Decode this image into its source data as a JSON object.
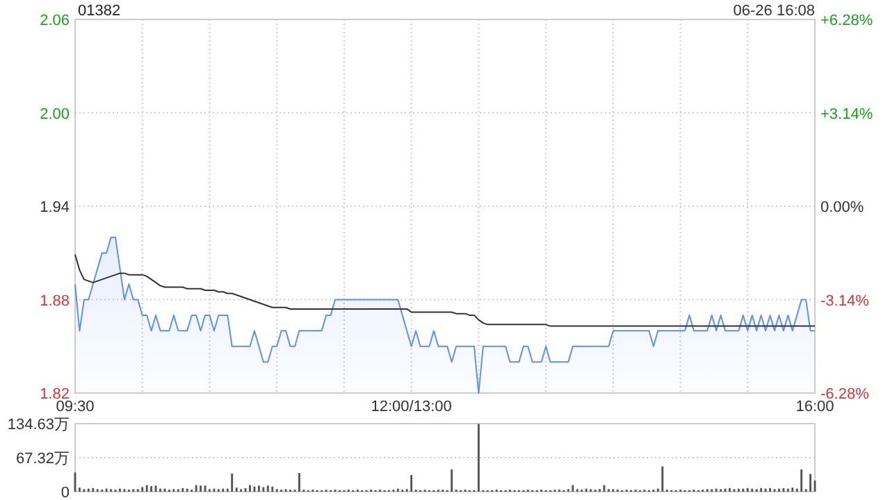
{
  "chart_data": [
    {
      "type": "line",
      "title": "01382",
      "subtitle": "06-26 16:08",
      "categories": [
        "09:30",
        null,
        null,
        null,
        null,
        null,
        null,
        null,
        null,
        null,
        null,
        null,
        null,
        null,
        null,
        null,
        null,
        null,
        null,
        null,
        null,
        null,
        null,
        null,
        null,
        null,
        null,
        null,
        null,
        null,
        null,
        null,
        null,
        null,
        null,
        null,
        null,
        null,
        null,
        null,
        null,
        null,
        null,
        null,
        null,
        null,
        null,
        null,
        null,
        null,
        null,
        null,
        null,
        null,
        null,
        null,
        null,
        null,
        null,
        null,
        null,
        null,
        null,
        null,
        null,
        null,
        null,
        null,
        null,
        null,
        null,
        null,
        null,
        null,
        null,
        "12:00/13:00",
        null,
        null,
        null,
        null,
        null,
        null,
        null,
        null,
        null,
        null,
        null,
        null,
        null,
        null,
        null,
        null,
        null,
        null,
        null,
        null,
        null,
        null,
        null,
        null,
        null,
        null,
        null,
        null,
        null,
        null,
        null,
        null,
        null,
        null,
        null,
        null,
        null,
        null,
        null,
        null,
        null,
        null,
        null,
        null,
        null,
        null,
        null,
        null,
        null,
        null,
        null,
        null,
        null,
        null,
        null,
        null,
        null,
        null,
        null,
        null,
        null,
        null,
        null,
        null,
        null,
        null,
        null,
        null,
        null,
        null,
        null,
        null,
        null,
        null,
        null,
        null,
        null,
        null,
        null,
        null,
        null,
        null,
        null,
        null,
        null,
        null,
        null,
        null,
        null,
        "16:00"
      ],
      "ylim": [
        1.82,
        2.06
      ],
      "yticks": [
        {
          "value": 1.82,
          "label": "1.82"
        },
        {
          "value": 1.88,
          "label": "1.88"
        },
        {
          "value": 1.94,
          "label": "1.94"
        },
        {
          "value": 2.0,
          "label": "2.00"
        },
        {
          "value": 2.06,
          "label": "2.06"
        }
      ],
      "y2lim": [
        -6.28,
        6.28
      ],
      "y2ticks": [
        {
          "value": -6.28,
          "label": "-6.28%"
        },
        {
          "value": -3.14,
          "label": "-3.14%"
        },
        {
          "value": 0,
          "label": "0.00%"
        },
        {
          "value": 3.14,
          "label": "+3.14%"
        },
        {
          "value": 6.28,
          "label": "+6.28%"
        }
      ],
      "grid": true,
      "series": [
        {
          "type": "area",
          "color": "#5b8ff9",
          "values": [
            1.89,
            1.86,
            1.88,
            1.88,
            1.89,
            1.9,
            1.91,
            1.91,
            1.92,
            1.92,
            1.9,
            1.88,
            1.89,
            1.88,
            1.88,
            1.87,
            1.87,
            1.86,
            1.87,
            1.86,
            1.86,
            1.86,
            1.87,
            1.86,
            1.86,
            1.86,
            1.87,
            1.87,
            1.86,
            1.87,
            1.87,
            1.86,
            1.87,
            1.87,
            1.87,
            1.85,
            1.85,
            1.85,
            1.85,
            1.85,
            1.86,
            1.85,
            1.84,
            1.84,
            1.85,
            1.85,
            1.86,
            1.86,
            1.85,
            1.85,
            1.86,
            1.86,
            1.86,
            1.86,
            1.86,
            1.86,
            1.87,
            1.87,
            1.88,
            1.88,
            1.88,
            1.88,
            1.88,
            1.88,
            1.88,
            1.88,
            1.88,
            1.88,
            1.88,
            1.88,
            1.88,
            1.88,
            1.88,
            1.87,
            1.86,
            1.85,
            1.86,
            1.85,
            1.85,
            1.85,
            1.86,
            1.85,
            1.85,
            1.85,
            1.84,
            1.85,
            1.85,
            1.85,
            1.85,
            1.85,
            1.82,
            1.85,
            1.85,
            1.85,
            1.85,
            1.85,
            1.85,
            1.84,
            1.84,
            1.84,
            1.85,
            1.85,
            1.84,
            1.84,
            1.84,
            1.85,
            1.84,
            1.84,
            1.84,
            1.84,
            1.84,
            1.85,
            1.85,
            1.85,
            1.85,
            1.85,
            1.85,
            1.85,
            1.85,
            1.85,
            1.86,
            1.86,
            1.86,
            1.86,
            1.86,
            1.86,
            1.86,
            1.86,
            1.86,
            1.85,
            1.86,
            1.86,
            1.86,
            1.86,
            1.86,
            1.86,
            1.86,
            1.87,
            1.86,
            1.86,
            1.86,
            1.86,
            1.87,
            1.86,
            1.87,
            1.86,
            1.86,
            1.86,
            1.86,
            1.87,
            1.86,
            1.87,
            1.86,
            1.87,
            1.86,
            1.87,
            1.86,
            1.87,
            1.86,
            1.87,
            1.86,
            1.87,
            1.88,
            1.88,
            1.86,
            1.86
          ]
        },
        {
          "type": "line",
          "color": "#333333",
          "values": [
            1.909,
            1.899,
            1.893,
            1.892,
            1.891,
            1.892,
            1.893,
            1.894,
            1.895,
            1.896,
            1.897,
            1.897,
            1.896,
            1.896,
            1.896,
            1.896,
            1.895,
            1.893,
            1.891,
            1.889,
            1.888,
            1.888,
            1.888,
            1.888,
            1.888,
            1.887,
            1.887,
            1.887,
            1.887,
            1.886,
            1.886,
            1.886,
            1.885,
            1.885,
            1.884,
            1.884,
            1.883,
            1.882,
            1.881,
            1.88,
            1.879,
            1.878,
            1.877,
            1.876,
            1.875,
            1.875,
            1.875,
            1.875,
            1.874,
            1.874,
            1.874,
            1.874,
            1.874,
            1.874,
            1.874,
            1.874,
            1.874,
            1.874,
            1.874,
            1.874,
            1.874,
            1.874,
            1.874,
            1.874,
            1.874,
            1.874,
            1.874,
            1.874,
            1.874,
            1.874,
            1.874,
            1.874,
            1.874,
            1.874,
            1.874,
            1.872,
            1.872,
            1.872,
            1.872,
            1.872,
            1.872,
            1.872,
            1.872,
            1.872,
            1.872,
            1.871,
            1.871,
            1.871,
            1.87,
            1.87,
            1.867,
            1.865,
            1.864,
            1.864,
            1.864,
            1.864,
            1.864,
            1.864,
            1.864,
            1.864,
            1.864,
            1.864,
            1.864,
            1.864,
            1.864,
            1.864,
            1.863,
            1.863,
            1.863,
            1.863,
            1.863,
            1.863,
            1.863,
            1.863,
            1.863,
            1.863,
            1.863,
            1.863,
            1.863,
            1.863,
            1.863,
            1.863,
            1.863,
            1.863,
            1.863,
            1.863,
            1.863,
            1.863,
            1.863,
            1.863,
            1.863,
            1.863,
            1.863,
            1.863,
            1.863,
            1.863,
            1.863,
            1.863,
            1.863,
            1.863,
            1.863,
            1.863,
            1.863,
            1.863,
            1.863,
            1.863,
            1.863,
            1.863,
            1.863,
            1.863,
            1.863,
            1.863,
            1.863,
            1.863,
            1.863,
            1.863,
            1.863,
            1.863,
            1.863,
            1.863,
            1.863,
            1.863,
            1.863,
            1.863,
            1.863,
            1.863
          ]
        }
      ]
    },
    {
      "type": "bar",
      "ylim": [
        0,
        134.63
      ],
      "tick_labels": "y",
      "grid": "y",
      "categories": [
        null,
        null,
        null,
        null,
        null,
        null,
        null,
        null,
        null,
        null,
        null,
        null,
        null,
        null,
        null,
        null,
        null,
        null,
        null,
        null,
        null,
        null,
        null,
        null,
        null,
        null,
        null,
        null,
        null,
        null,
        null,
        null,
        null,
        null,
        null,
        null,
        null,
        null,
        null,
        null,
        null,
        null,
        null,
        null,
        null,
        null,
        null,
        null,
        null,
        null,
        null,
        null,
        null,
        null,
        null,
        null,
        null,
        null,
        null,
        null,
        null,
        null,
        null,
        null,
        null,
        null,
        null,
        null,
        null,
        null,
        null,
        null,
        null,
        null,
        null,
        null,
        null,
        null,
        null,
        null,
        null,
        null,
        null,
        null,
        null,
        null,
        null,
        null,
        null,
        null,
        null,
        null,
        null,
        null,
        null,
        null,
        null,
        null,
        null,
        null,
        null,
        null,
        null,
        null,
        null,
        null,
        null,
        null,
        null,
        null,
        null,
        null,
        null,
        null,
        null,
        null,
        null,
        null,
        null,
        null,
        null,
        null,
        null,
        null,
        null,
        null,
        null,
        null,
        null,
        null,
        null,
        null,
        null,
        null,
        null,
        null,
        null,
        null,
        null,
        null,
        null,
        null,
        null,
        null,
        null,
        null,
        null,
        null,
        null,
        null,
        null,
        null,
        null,
        null,
        null,
        null,
        null,
        null,
        null,
        null,
        null,
        null,
        null,
        null,
        null,
        null
      ],
      "yticks": [
        {
          "value": 0,
          "label": "0"
        },
        {
          "value": 67.32,
          "label": "67.32万"
        },
        {
          "value": 134.63,
          "label": "134.63万"
        }
      ],
      "series": [
        {
          "color": "#555555",
          "values": [
            38,
            8,
            5,
            6,
            7,
            5,
            4,
            6,
            5,
            4,
            6,
            5,
            4,
            5,
            5,
            9,
            13,
            11,
            12,
            6,
            6,
            4,
            5,
            5,
            7,
            6,
            4,
            13,
            12,
            12,
            5,
            6,
            5,
            6,
            6,
            36,
            8,
            5,
            7,
            13,
            10,
            12,
            9,
            12,
            10,
            5,
            4,
            5,
            4,
            4,
            37,
            4,
            3,
            4,
            3,
            3,
            4,
            3,
            4,
            3,
            3,
            4,
            3,
            4,
            3,
            3,
            4,
            3,
            4,
            3,
            3,
            4,
            6,
            4,
            5,
            33,
            4,
            3,
            4,
            3,
            3,
            4,
            4,
            3,
            44,
            4,
            3,
            4,
            3,
            3,
            134,
            3,
            3,
            3,
            4,
            3,
            3,
            4,
            3,
            3,
            3,
            4,
            3,
            3,
            4,
            3,
            3,
            4,
            4,
            3,
            5,
            13,
            5,
            4,
            6,
            5,
            4,
            5,
            13,
            5,
            5,
            4,
            3,
            4,
            3,
            4,
            3,
            4,
            3,
            4,
            6,
            50,
            4,
            3,
            3,
            4,
            3,
            3,
            4,
            3,
            4,
            5,
            5,
            6,
            5,
            6,
            7,
            5,
            6,
            6,
            7,
            6,
            5,
            7,
            6,
            7,
            5,
            6,
            7,
            6,
            8,
            6,
            44,
            5,
            35,
            22
          ]
        }
      ]
    }
  ]
}
